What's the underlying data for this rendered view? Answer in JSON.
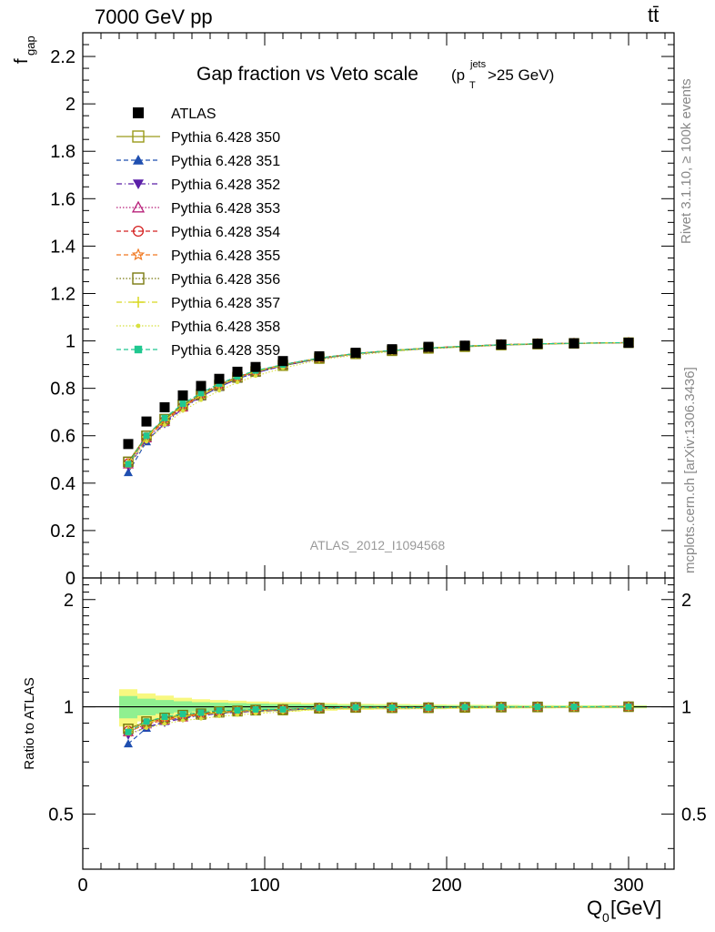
{
  "header": {
    "left": "7000 GeV pp",
    "right": "tt̄"
  },
  "side_labels": {
    "rivet": "Rivet 3.1.10, ≥ 100k events",
    "mcplots": "mcplots.cern.ch [arXiv:1306.3436]"
  },
  "colors": {
    "ATLAS": "#000000",
    "s350": "#9a9a1a",
    "s351": "#1f4fb0",
    "s352": "#5a1fa8",
    "s353": "#b8207a",
    "s354": "#d42020",
    "s355": "#f07820",
    "s356": "#7a7a10",
    "s357": "#d8d820",
    "s358": "#d8e040",
    "s359": "#20c890",
    "band_green": "#90f090",
    "band_yellow": "#f8f880"
  },
  "chart_data": {
    "type": "scatter",
    "title": "Gap fraction vs Veto scale",
    "title_suffix": "(p",
    "title_sup": "jets",
    "title_sub": "T",
    "title_end": ">25 GeV)",
    "watermark": "ATLAS_2012_I1094568",
    "xlabel": "Q",
    "xlabel_sub": "0",
    "xlabel_unit": " [GeV]",
    "ylabel": "f",
    "ylabel_sub": "gap",
    "ratio_ylabel": "Ratio to ATLAS",
    "xlim": [
      0,
      325
    ],
    "ylim": [
      0,
      2.3
    ],
    "ratio_ylim": [
      0.35,
      2.3
    ],
    "x_ticks": [
      "0",
      "100",
      "200",
      "300"
    ],
    "y_ticks": [
      "0",
      "0.2",
      "0.4",
      "0.6",
      "0.8",
      "1",
      "1.2",
      "1.4",
      "1.6",
      "1.8",
      "2",
      "2.2"
    ],
    "ratio_ticks": [
      "0.5",
      "1",
      "2"
    ],
    "x": [
      25,
      35,
      45,
      55,
      65,
      75,
      85,
      95,
      110,
      130,
      150,
      170,
      190,
      210,
      230,
      250,
      270,
      300
    ],
    "legend_placement": "top-left",
    "series": [
      {
        "name": "ATLAS",
        "marker": "square-filled",
        "dash": "none",
        "colorKey": "ATLAS",
        "values": [
          0.565,
          0.66,
          0.72,
          0.77,
          0.81,
          0.84,
          0.87,
          0.89,
          0.915,
          0.935,
          0.95,
          0.965,
          0.975,
          0.98,
          0.985,
          0.988,
          0.99,
          0.992
        ]
      },
      {
        "name": "Pythia 6.428 350",
        "marker": "square-open",
        "dash": "solid",
        "colorKey": "s350",
        "values": [
          0.49,
          0.6,
          0.67,
          0.73,
          0.77,
          0.81,
          0.845,
          0.87,
          0.895,
          0.925,
          0.945,
          0.958,
          0.968,
          0.975,
          0.982,
          0.986,
          0.989,
          0.992
        ]
      },
      {
        "name": "Pythia 6.428 351",
        "marker": "triangle-up-filled",
        "dash": "dash",
        "colorKey": "s351",
        "values": [
          0.445,
          0.575,
          0.655,
          0.72,
          0.765,
          0.805,
          0.84,
          0.865,
          0.895,
          0.925,
          0.945,
          0.958,
          0.968,
          0.977,
          0.983,
          0.987,
          0.99,
          0.993
        ]
      },
      {
        "name": "Pythia 6.428 352",
        "marker": "triangle-down-filled",
        "dash": "dashdot",
        "colorKey": "s352",
        "values": [
          0.47,
          0.58,
          0.65,
          0.715,
          0.765,
          0.805,
          0.84,
          0.865,
          0.895,
          0.925,
          0.945,
          0.96,
          0.97,
          0.978,
          0.984,
          0.988,
          0.99,
          0.993
        ]
      },
      {
        "name": "Pythia 6.428 353",
        "marker": "triangle-up-open",
        "dash": "dot",
        "colorKey": "s353",
        "values": [
          0.48,
          0.59,
          0.66,
          0.72,
          0.77,
          0.81,
          0.845,
          0.87,
          0.9,
          0.928,
          0.947,
          0.96,
          0.97,
          0.978,
          0.984,
          0.988,
          0.99,
          0.993
        ]
      },
      {
        "name": "Pythia 6.428 354",
        "marker": "circle-open",
        "dash": "dash",
        "colorKey": "s354",
        "values": [
          0.485,
          0.595,
          0.665,
          0.725,
          0.775,
          0.815,
          0.848,
          0.872,
          0.9,
          0.928,
          0.947,
          0.96,
          0.97,
          0.978,
          0.984,
          0.988,
          0.99,
          0.993
        ]
      },
      {
        "name": "Pythia 6.428 355",
        "marker": "star-open",
        "dash": "dash",
        "colorKey": "s355",
        "values": [
          0.48,
          0.59,
          0.66,
          0.72,
          0.77,
          0.81,
          0.845,
          0.87,
          0.898,
          0.927,
          0.946,
          0.96,
          0.97,
          0.978,
          0.984,
          0.988,
          0.99,
          0.993
        ]
      },
      {
        "name": "Pythia 6.428 356",
        "marker": "square-open",
        "dash": "dot",
        "colorKey": "s356",
        "values": [
          0.49,
          0.6,
          0.67,
          0.73,
          0.775,
          0.815,
          0.848,
          0.872,
          0.9,
          0.928,
          0.947,
          0.96,
          0.97,
          0.978,
          0.984,
          0.988,
          0.99,
          0.993
        ]
      },
      {
        "name": "Pythia 6.428 357",
        "marker": "cross",
        "dash": "dashdot",
        "colorKey": "s357",
        "values": [
          0.485,
          0.595,
          0.665,
          0.725,
          0.77,
          0.81,
          0.845,
          0.87,
          0.898,
          0.927,
          0.946,
          0.96,
          0.97,
          0.978,
          0.984,
          0.988,
          0.99,
          0.993
        ]
      },
      {
        "name": "Pythia 6.428 358",
        "marker": "dot",
        "dash": "dot",
        "colorKey": "s358",
        "values": [
          0.475,
          0.575,
          0.645,
          0.705,
          0.75,
          0.79,
          0.825,
          0.852,
          0.885,
          0.92,
          0.94,
          0.955,
          0.967,
          0.976,
          0.983,
          0.987,
          0.99,
          0.993
        ]
      },
      {
        "name": "Pythia 6.428 359",
        "marker": "square-filled-small",
        "dash": "dash",
        "colorKey": "s359",
        "values": [
          0.48,
          0.6,
          0.675,
          0.735,
          0.78,
          0.82,
          0.85,
          0.875,
          0.9,
          0.928,
          0.947,
          0.96,
          0.97,
          0.978,
          0.984,
          0.988,
          0.99,
          0.993
        ]
      }
    ]
  }
}
